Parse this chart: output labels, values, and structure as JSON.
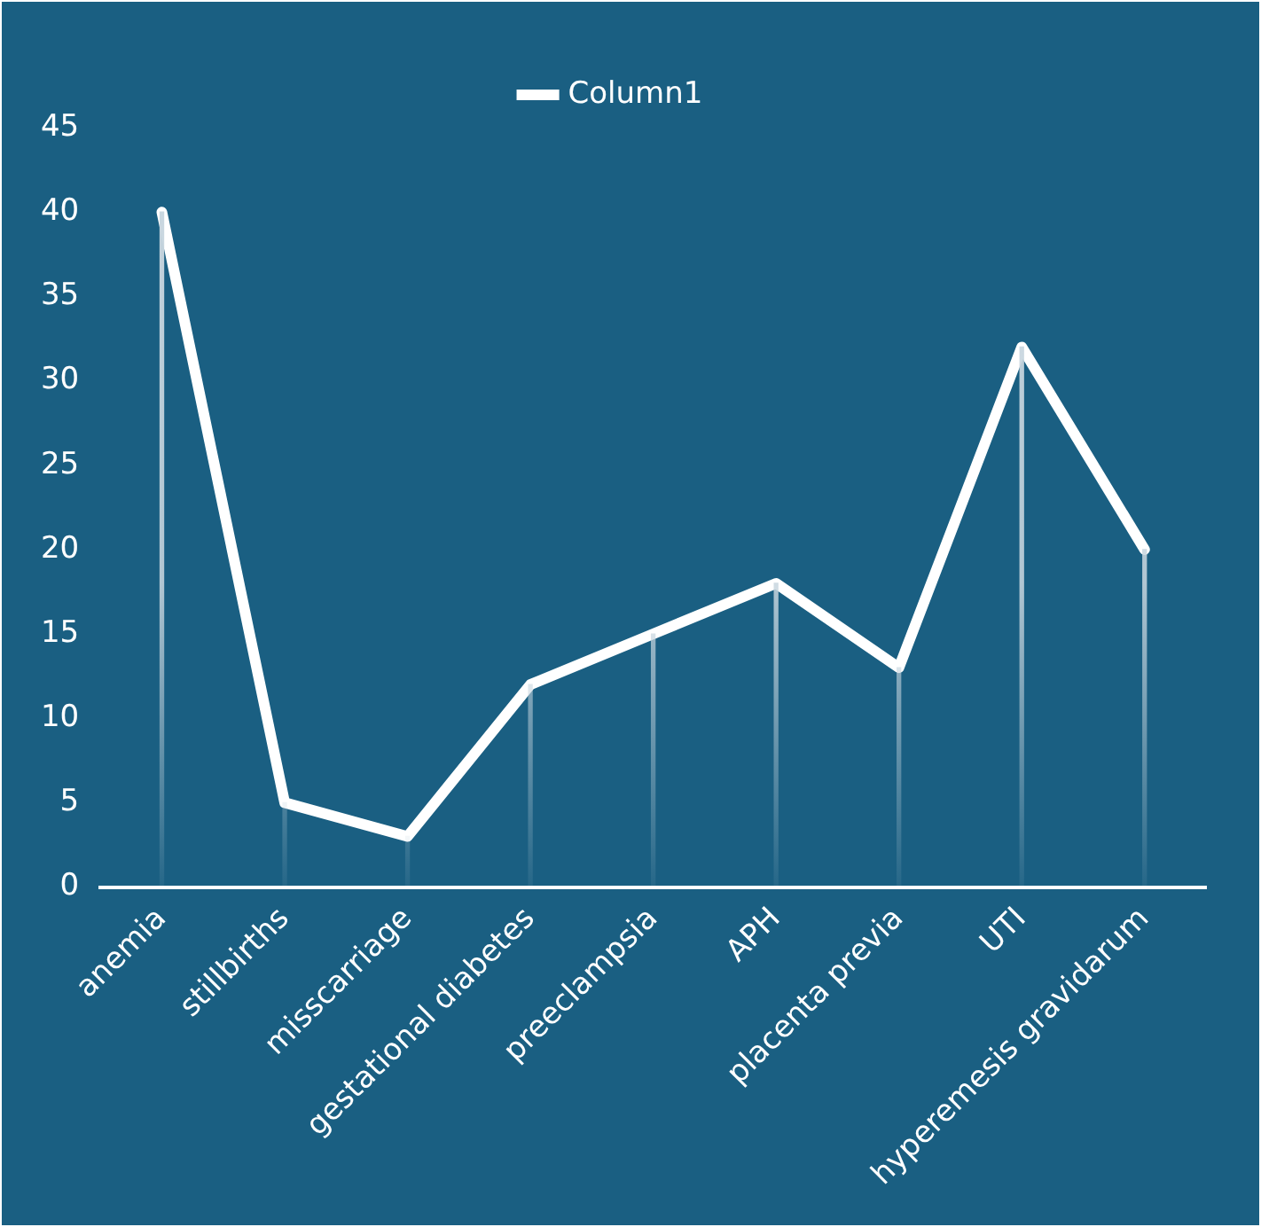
{
  "chart_data": {
    "type": "line",
    "categories": [
      "anemia",
      "stillbirths",
      "misscarriage",
      "gestational diabetes",
      "preeclampsia",
      "APH",
      "placenta previa",
      "UTI",
      "hyperemesis gravidarum"
    ],
    "series": [
      {
        "name": "Column1",
        "color": "#ffffff",
        "values": [
          40,
          5,
          3,
          12,
          15,
          18,
          13,
          32,
          20
        ]
      },
      {
        "type": "bar",
        "color": "#c8d6df",
        "values": [
          40,
          5,
          3,
          12,
          15,
          18,
          13,
          32,
          20
        ]
      }
    ],
    "ylim": [
      0,
      45
    ],
    "yticks": [
      0,
      5,
      10,
      15,
      20,
      25,
      30,
      35,
      40,
      45
    ],
    "grid": false,
    "legend": "top",
    "marker": "none",
    "line_style": "solid"
  }
}
